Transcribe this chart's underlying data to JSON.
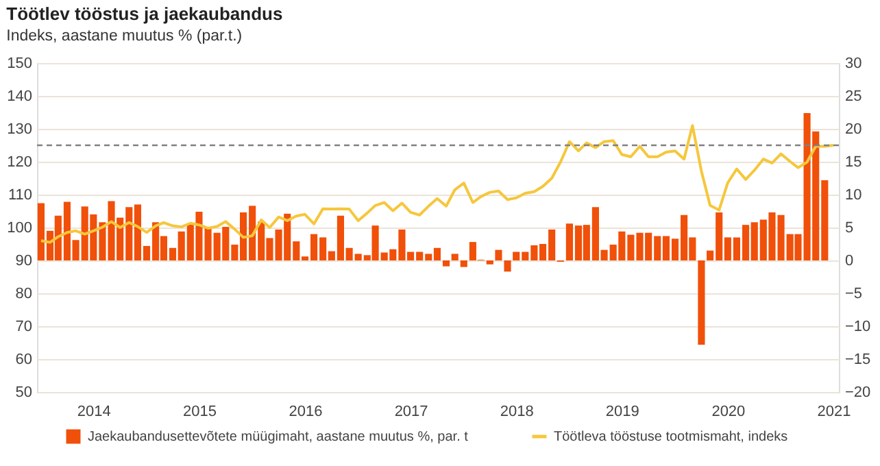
{
  "chart_data": {
    "type": "bar",
    "title": "Töötlev tööstus ja jaekaubandus",
    "subtitle": "Indeks, aastane muutus % (par.t.)",
    "xlim": [
      "2013-12-18",
      "2021-07-20"
    ],
    "xticks": [
      {
        "value": "2014-07-01",
        "label": "2014"
      },
      {
        "value": "2015-07-01",
        "label": "2015"
      },
      {
        "value": "2016-07-01",
        "label": "2016"
      },
      {
        "value": "2017-07-01",
        "label": "2017"
      },
      {
        "value": "2018-07-01",
        "label": "2018"
      },
      {
        "value": "2019-07-01",
        "label": "2019"
      },
      {
        "value": "2020-07-01",
        "label": "2020"
      },
      {
        "value": "2021-07-01",
        "label": "2021"
      }
    ],
    "ylim": [
      50,
      150
    ],
    "yticks": [
      50,
      60,
      70,
      80,
      90,
      100,
      110,
      120,
      130,
      140,
      150
    ],
    "y2lim": [
      -20,
      30
    ],
    "y2ticks": [
      -20,
      -15,
      -10,
      -5,
      0,
      5,
      10,
      15,
      20,
      25,
      30
    ],
    "grid": "y",
    "legend": "bottom",
    "marker": "none",
    "line_style": "solid",
    "ref_lines": [
      {
        "axis": "y",
        "value": 125,
        "color": "#808080",
        "line_style": "dashed"
      }
    ],
    "series": [
      {
        "name": "Jaekaubandusettevõtete müügimaht, aastane muutus %, par. t",
        "axis": "y2",
        "color": "#f0500a",
        "x": [
          "2014-01",
          "2014-02",
          "2014-03",
          "2014-04",
          "2014-05",
          "2014-06",
          "2014-07",
          "2014-08",
          "2014-09",
          "2014-10",
          "2014-11",
          "2014-12",
          "2015-01",
          "2015-02",
          "2015-03",
          "2015-04",
          "2015-05",
          "2015-06",
          "2015-07",
          "2015-08",
          "2015-09",
          "2015-10",
          "2015-11",
          "2015-12",
          "2016-01",
          "2016-02",
          "2016-03",
          "2016-04",
          "2016-05",
          "2016-06",
          "2016-07",
          "2016-08",
          "2016-09",
          "2016-10",
          "2016-11",
          "2016-12",
          "2017-01",
          "2017-02",
          "2017-03",
          "2017-04",
          "2017-05",
          "2017-06",
          "2017-07",
          "2017-08",
          "2017-09",
          "2017-10",
          "2017-11",
          "2017-12",
          "2018-01",
          "2018-02",
          "2018-03",
          "2018-04",
          "2018-05",
          "2018-06",
          "2018-07",
          "2018-08",
          "2018-09",
          "2018-10",
          "2018-11",
          "2018-12",
          "2019-01",
          "2019-02",
          "2019-03",
          "2019-04",
          "2019-05",
          "2019-06",
          "2019-07",
          "2019-08",
          "2019-09",
          "2019-10",
          "2019-11",
          "2019-12",
          "2020-01",
          "2020-02",
          "2020-03",
          "2020-04",
          "2020-05",
          "2020-06",
          "2020-07",
          "2020-08",
          "2020-09",
          "2020-10",
          "2020-11",
          "2020-12",
          "2021-01",
          "2021-02",
          "2021-03",
          "2021-04",
          "2021-05",
          "2021-06"
        ],
        "values": [
          8.7,
          4.5,
          6.8,
          8.9,
          3.1,
          8.2,
          7.0,
          5.8,
          9.0,
          6.5,
          8.1,
          8.5,
          2.2,
          5.8,
          3.7,
          1.9,
          4.4,
          5.6,
          7.4,
          4.9,
          4.2,
          5.1,
          2.4,
          7.3,
          8.3,
          5.9,
          3.4,
          4.7,
          7.1,
          2.9,
          0.6,
          4.0,
          3.5,
          1.4,
          6.8,
          1.9,
          1.0,
          0.8,
          5.3,
          1.2,
          1.7,
          4.7,
          1.3,
          1.3,
          1.0,
          1.9,
          -0.9,
          1.0,
          -1.0,
          2.8,
          0.1,
          -0.6,
          1.6,
          -1.7,
          1.3,
          1.3,
          2.3,
          2.5,
          4.7,
          -0.2,
          5.6,
          5.3,
          5.4,
          8.1,
          1.6,
          2.4,
          4.4,
          3.9,
          4.2,
          4.2,
          3.7,
          3.7,
          3.3,
          6.9,
          3.5,
          -12.8,
          1.5,
          7.3,
          3.5,
          3.5,
          5.4,
          5.8,
          6.2,
          7.3,
          6.9,
          4.0,
          4.0,
          22.4,
          19.6,
          12.2
        ]
      },
      {
        "name": "Töötleva tööstuse tootmismaht, indeks",
        "type": "line",
        "axis": "y",
        "color": "#f5c73c",
        "x": [
          "2014-01",
          "2014-02",
          "2014-03",
          "2014-04",
          "2014-05",
          "2014-06",
          "2014-07",
          "2014-08",
          "2014-09",
          "2014-10",
          "2014-11",
          "2014-12",
          "2015-01",
          "2015-02",
          "2015-03",
          "2015-04",
          "2015-05",
          "2015-06",
          "2015-07",
          "2015-08",
          "2015-09",
          "2015-10",
          "2015-11",
          "2015-12",
          "2016-01",
          "2016-02",
          "2016-03",
          "2016-04",
          "2016-05",
          "2016-06",
          "2016-07",
          "2016-08",
          "2016-09",
          "2016-10",
          "2016-11",
          "2016-12",
          "2017-01",
          "2017-02",
          "2017-03",
          "2017-04",
          "2017-05",
          "2017-06",
          "2017-07",
          "2017-08",
          "2017-09",
          "2017-10",
          "2017-11",
          "2017-12",
          "2018-01",
          "2018-02",
          "2018-03",
          "2018-04",
          "2018-05",
          "2018-06",
          "2018-07",
          "2018-08",
          "2018-09",
          "2018-10",
          "2018-11",
          "2018-12",
          "2019-01",
          "2019-02",
          "2019-03",
          "2019-04",
          "2019-05",
          "2019-06",
          "2019-07",
          "2019-08",
          "2019-09",
          "2019-10",
          "2019-11",
          "2019-12",
          "2020-01",
          "2020-02",
          "2020-03",
          "2020-04",
          "2020-05",
          "2020-06",
          "2020-07",
          "2020-08",
          "2020-09",
          "2020-10",
          "2020-11",
          "2020-12",
          "2021-01",
          "2021-02",
          "2021-03",
          "2021-04",
          "2021-05",
          "2021-06",
          "2021-07"
        ],
        "values": [
          96.0,
          95.5,
          97.2,
          98.5,
          99.0,
          98.0,
          99.0,
          100.1,
          101.8,
          100.0,
          101.5,
          100.3,
          98.5,
          100.5,
          101.5,
          100.5,
          100.2,
          101.3,
          100.8,
          99.8,
          100.3,
          101.8,
          99.5,
          97.0,
          97.5,
          102.3,
          100.0,
          103.2,
          102.1,
          103.5,
          104.0,
          101.1,
          105.7,
          105.6,
          105.7,
          105.6,
          102.1,
          104.4,
          106.7,
          107.6,
          105.1,
          107.4,
          104.6,
          103.8,
          106.5,
          108.8,
          106.5,
          111.5,
          113.5,
          107.6,
          109.4,
          110.7,
          111.1,
          108.5,
          109.0,
          110.4,
          110.9,
          112.5,
          115.0,
          119.9,
          126.1,
          123.3,
          125.7,
          124.3,
          126.1,
          126.4,
          122.2,
          121.5,
          124.7,
          121.5,
          121.5,
          122.9,
          123.3,
          120.8,
          131.0,
          117.1,
          106.7,
          105.3,
          113.6,
          117.8,
          114.6,
          117.4,
          120.8,
          119.6,
          122.4,
          120.1,
          118.2,
          119.9,
          124.7,
          124.7,
          125.0
        ]
      }
    ]
  }
}
